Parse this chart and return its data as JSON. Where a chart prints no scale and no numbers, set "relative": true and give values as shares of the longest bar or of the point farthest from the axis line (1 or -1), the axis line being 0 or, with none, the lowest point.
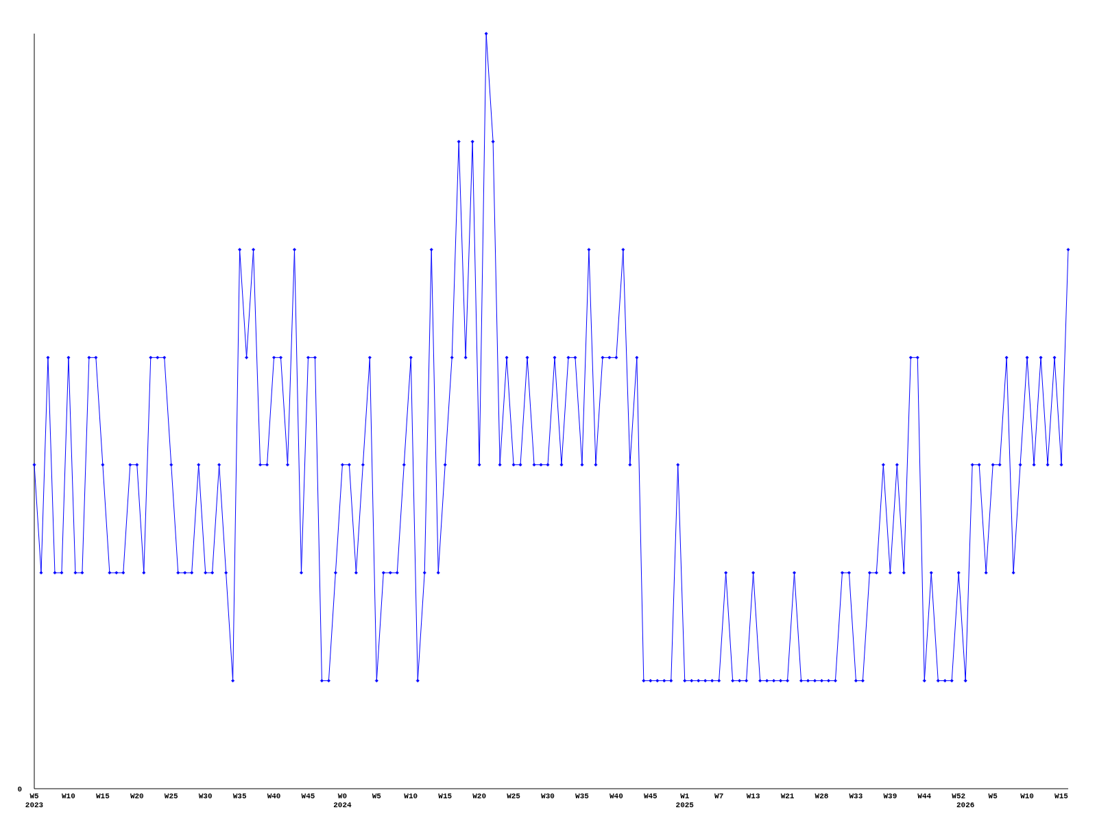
{
  "chart_data": {
    "type": "line",
    "relative": true,
    "marker": "diamond",
    "line_style": "solid",
    "annotations": [
      "0"
    ],
    "categories": [
      "W5\n2023",
      null,
      null,
      null,
      null,
      "W10",
      null,
      null,
      null,
      null,
      "W15",
      null,
      null,
      null,
      null,
      "W20",
      null,
      null,
      null,
      null,
      "W25",
      null,
      null,
      null,
      null,
      "W30",
      null,
      null,
      null,
      null,
      "W35",
      null,
      null,
      null,
      null,
      "W40",
      null,
      null,
      null,
      null,
      "W45",
      null,
      null,
      null,
      null,
      "W0\n2024",
      null,
      null,
      null,
      null,
      "W5",
      null,
      null,
      null,
      null,
      "W10",
      null,
      null,
      null,
      null,
      "W15",
      null,
      null,
      null,
      null,
      "W20",
      null,
      null,
      null,
      null,
      "W25",
      null,
      null,
      null,
      null,
      "W30",
      null,
      null,
      null,
      null,
      "W35",
      null,
      null,
      null,
      null,
      "W40",
      null,
      null,
      null,
      null,
      "W45",
      null,
      null,
      null,
      null,
      "W1\n2025",
      null,
      null,
      null,
      null,
      "W7",
      null,
      null,
      null,
      null,
      "W13",
      null,
      null,
      null,
      null,
      "W21",
      null,
      null,
      null,
      null,
      "W28",
      null,
      null,
      null,
      null,
      "W33",
      null,
      null,
      null,
      null,
      "W39",
      null,
      null,
      null,
      null,
      "W44",
      null,
      null,
      null,
      null,
      "W52",
      "\n2026",
      null,
      null,
      null,
      "W5",
      null,
      null,
      null,
      null,
      "W10",
      null,
      null,
      null,
      null,
      "W15",
      null
    ],
    "series": [
      {
        "color": "#0000ff",
        "values": [
          0.429,
          0.286,
          0.571,
          0.286,
          0.286,
          0.571,
          0.286,
          0.286,
          0.571,
          0.571,
          0.429,
          0.286,
          0.286,
          0.286,
          0.429,
          0.429,
          0.286,
          0.571,
          0.571,
          0.571,
          0.429,
          0.286,
          0.286,
          0.286,
          0.429,
          0.286,
          0.286,
          0.429,
          0.286,
          0.143,
          0.714,
          0.571,
          0.714,
          0.429,
          0.429,
          0.571,
          0.571,
          0.429,
          0.714,
          0.286,
          0.571,
          0.571,
          0.143,
          0.143,
          0.286,
          0.429,
          0.429,
          0.286,
          0.429,
          0.571,
          0.143,
          0.286,
          0.286,
          0.286,
          0.429,
          0.571,
          0.143,
          0.286,
          0.714,
          0.286,
          0.429,
          0.571,
          0.857,
          0.571,
          0.857,
          0.429,
          1,
          0.857,
          0.429,
          0.571,
          0.429,
          0.429,
          0.571,
          0.429,
          0.429,
          0.429,
          0.571,
          0.429,
          0.571,
          0.571,
          0.429,
          0.714,
          0.429,
          0.571,
          0.571,
          0.571,
          0.714,
          0.429,
          0.571,
          0.143,
          0.143,
          0.143,
          0.143,
          0.143,
          0.429,
          0.143,
          0.143,
          0.143,
          0.143,
          0.143,
          0.143,
          0.286,
          0.143,
          0.143,
          0.143,
          0.286,
          0.143,
          0.143,
          0.143,
          0.143,
          0.143,
          0.286,
          0.143,
          0.143,
          0.143,
          0.143,
          0.143,
          0.143,
          0.286,
          0.286,
          0.143,
          0.143,
          0.286,
          0.286,
          0.429,
          0.286,
          0.429,
          0.286,
          0.571,
          0.571,
          0.143,
          0.286,
          0.143,
          0.143,
          0.143,
          0.286,
          0.143,
          0.429,
          0.429,
          0.286,
          0.429,
          0.429,
          0.571,
          0.286,
          0.429,
          0.571,
          0.429,
          0.571,
          0.429,
          0.571,
          0.429,
          0.714
        ]
      }
    ]
  }
}
